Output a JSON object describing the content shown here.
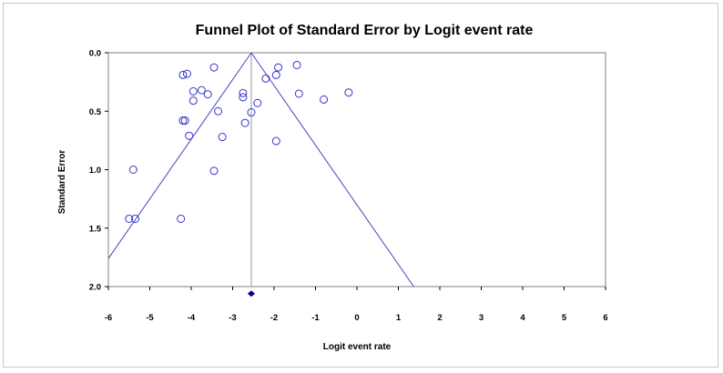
{
  "chart_data": {
    "type": "scatter",
    "title": "Funnel Plot of Standard Error by Logit event rate",
    "xlabel": "Logit event rate",
    "ylabel": "Standard Error",
    "xlim": [
      -6,
      6
    ],
    "ylim": [
      0.0,
      2.0
    ],
    "y_inverted": true,
    "x_ticks": [
      -6,
      -5,
      -4,
      -3,
      -2,
      -1,
      0,
      1,
      2,
      3,
      4,
      5,
      6
    ],
    "y_ticks": [
      0.0,
      0.5,
      1.0,
      1.5,
      2.0
    ],
    "y_tick_labels": [
      "0.0",
      "0.5",
      "1.0",
      "1.5",
      "2.0"
    ],
    "grid": false,
    "summary_effect": -2.55,
    "summary_diamond_y": 2.06,
    "funnel_slope": 1.96,
    "colors": {
      "points": "#3333cc",
      "funnel": "#4444bb",
      "center_line": "#999999",
      "diamond": "#00008b"
    },
    "points": [
      {
        "x": -4.2,
        "y": 0.19
      },
      {
        "x": -4.1,
        "y": 0.18
      },
      {
        "x": -3.45,
        "y": 0.125
      },
      {
        "x": -1.45,
        "y": 0.105
      },
      {
        "x": -1.9,
        "y": 0.125
      },
      {
        "x": -1.95,
        "y": 0.19
      },
      {
        "x": -2.2,
        "y": 0.22
      },
      {
        "x": -3.75,
        "y": 0.32
      },
      {
        "x": -3.95,
        "y": 0.33
      },
      {
        "x": -3.6,
        "y": 0.355
      },
      {
        "x": -2.75,
        "y": 0.345
      },
      {
        "x": -2.75,
        "y": 0.38
      },
      {
        "x": -1.4,
        "y": 0.35
      },
      {
        "x": -0.2,
        "y": 0.34
      },
      {
        "x": -0.8,
        "y": 0.4
      },
      {
        "x": -3.95,
        "y": 0.41
      },
      {
        "x": -2.4,
        "y": 0.43
      },
      {
        "x": -3.35,
        "y": 0.5
      },
      {
        "x": -2.55,
        "y": 0.51
      },
      {
        "x": -4.2,
        "y": 0.58
      },
      {
        "x": -4.15,
        "y": 0.58
      },
      {
        "x": -2.7,
        "y": 0.6
      },
      {
        "x": -4.05,
        "y": 0.71
      },
      {
        "x": -3.25,
        "y": 0.72
      },
      {
        "x": -1.95,
        "y": 0.755
      },
      {
        "x": -5.4,
        "y": 1.0
      },
      {
        "x": -3.45,
        "y": 1.01
      },
      {
        "x": -5.5,
        "y": 1.42
      },
      {
        "x": -5.35,
        "y": 1.42
      },
      {
        "x": -4.25,
        "y": 1.42
      }
    ]
  }
}
